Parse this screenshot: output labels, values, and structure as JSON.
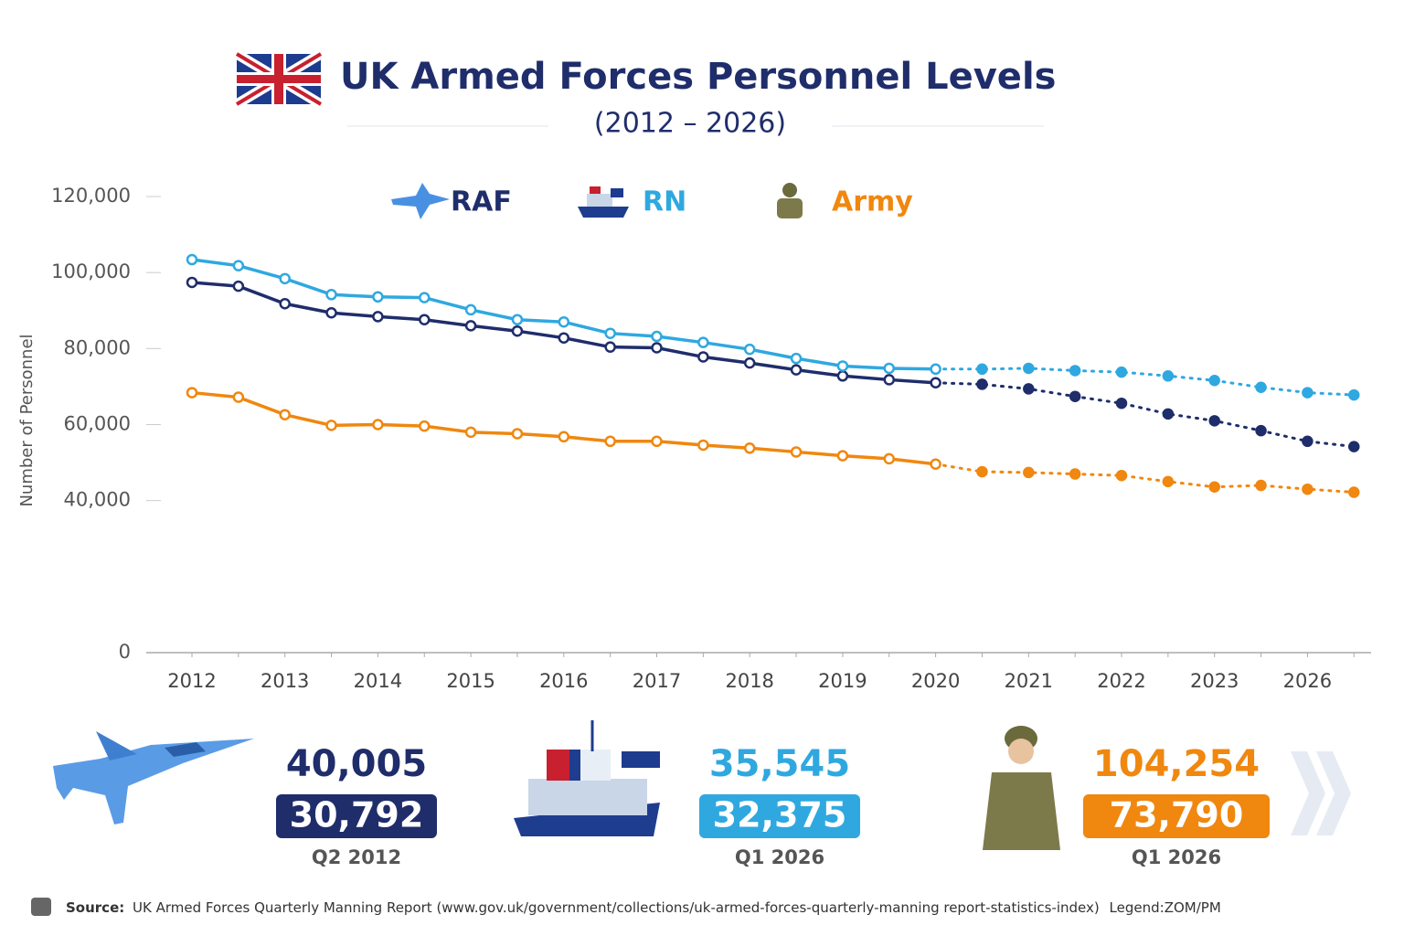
{
  "chart_data": {
    "type": "line",
    "title": "UK Armed Forces Personnel Levels",
    "subtitle": "(2012 – 2026)",
    "y_label": "Number of Personnel",
    "categories": [
      "2012",
      null,
      "2013",
      null,
      "2014",
      null,
      "2015",
      null,
      "2016",
      null,
      "2017",
      null,
      "2018",
      null,
      "2019",
      null,
      "2020",
      null,
      "2021",
      null,
      "2022",
      null,
      "2023",
      null,
      "2026",
      null
    ],
    "series": [
      {
        "name": "RAF",
        "color": "#1f2d6b",
        "values": [
          97400,
          96400,
          91800,
          89400,
          88400,
          87600,
          86000,
          84600,
          82800,
          80400,
          80200,
          77800,
          76200,
          74400,
          72800,
          71800,
          71000,
          70600,
          69400,
          67400,
          65600,
          62800,
          61000,
          58400,
          55600,
          54200
        ]
      },
      {
        "name": "RN",
        "color": "#2fa8e0",
        "values": [
          103400,
          101800,
          98400,
          94200,
          93600,
          93400,
          90200,
          87600,
          87000,
          84000,
          83200,
          81600,
          79800,
          77400,
          75400,
          74800,
          74600,
          74600,
          74800,
          74200,
          73800,
          72800,
          71600,
          69800,
          68400,
          67800
        ]
      },
      {
        "name": "Army",
        "color": "#f0870f",
        "values": [
          68400,
          67200,
          62600,
          59800,
          60000,
          59600,
          58000,
          57600,
          56800,
          55600,
          55600,
          54600,
          53800,
          52800,
          51800,
          51000,
          49600,
          47600,
          47400,
          47000,
          46600,
          45000,
          43600,
          44000,
          43000,
          42200
        ]
      }
    ],
    "projection_from_index": 16,
    "ylim": [
      0,
      120000
    ],
    "yticks": [
      0,
      {
        "value": 40000,
        "label": "40,000"
      },
      {
        "value": 60000,
        "label": "60,000"
      },
      {
        "value": 80000,
        "label": "80,000"
      },
      {
        "value": 100000,
        "label": "100,000"
      },
      {
        "value": 120000,
        "label": "120,000"
      }
    ]
  },
  "stats": [
    {
      "top": "40,005",
      "box": "30,792",
      "period": "Q2 2012"
    },
    {
      "top": "35,545",
      "box": "32,375",
      "period": "Q1 2026"
    },
    {
      "top": "104,254",
      "box": "73,790",
      "period": "Q1 2026"
    }
  ],
  "footer": {
    "source_label": "Source:",
    "source_text": "UK Armed Forces Quarterly Manning Report (www.gov.uk/government/collections/uk-armed-forces-quarterly-manning report-statistics-index)",
    "legend_note": "Legend:ZOM/PM"
  }
}
